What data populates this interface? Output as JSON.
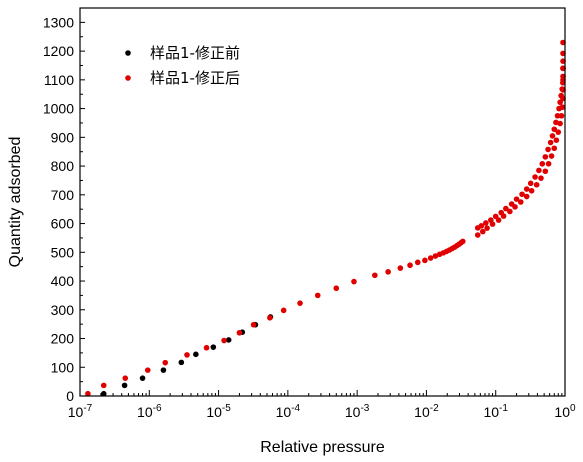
{
  "chart_data": {
    "type": "scatter",
    "title": "",
    "xlabel": "Relative pressure",
    "ylabel": "Quantity adsorbed",
    "x_scale": "log",
    "xlim": [
      1e-07,
      1
    ],
    "ylim": [
      0,
      1350
    ],
    "x_ticks": [
      {
        "value": 1e-07,
        "base": "10",
        "exp": "-7"
      },
      {
        "value": 1e-06,
        "base": "10",
        "exp": "-6"
      },
      {
        "value": 1e-05,
        "base": "10",
        "exp": "-5"
      },
      {
        "value": 0.0001,
        "base": "10",
        "exp": "-4"
      },
      {
        "value": 0.001,
        "base": "10",
        "exp": "-3"
      },
      {
        "value": 0.01,
        "base": "10",
        "exp": "-2"
      },
      {
        "value": 0.1,
        "base": "10",
        "exp": "-1"
      },
      {
        "value": 1,
        "base": "10",
        "exp": "0"
      }
    ],
    "y_ticks": [
      0,
      100,
      200,
      300,
      400,
      500,
      600,
      700,
      800,
      900,
      1000,
      1100,
      1200,
      1300
    ],
    "legend_position": "top-left",
    "grid": false,
    "series": [
      {
        "name": "样品1-修正前",
        "color": "#000000",
        "x": [
          2.2e-07,
          4.4e-07,
          8e-07,
          1.6e-06,
          2.9e-06,
          4.7e-06,
          8.4e-06,
          1.4e-05,
          2.2e-05,
          3.4e-05,
          5.6e-05
        ],
        "y": [
          8,
          37,
          62,
          90,
          117,
          145,
          170,
          195,
          222,
          248,
          275
        ]
      },
      {
        "name": "样品1-修正后",
        "color": "#e00000",
        "x": [
          1.3e-07,
          2.2e-07,
          4.5e-07,
          9.5e-07,
          1.7e-06,
          3.5e-06,
          6.7e-06,
          1.2e-05,
          2e-05,
          3.2e-05,
          5.5e-05,
          8.7e-05,
          0.00015,
          0.00027,
          0.0005,
          0.0009,
          0.0018,
          0.0028,
          0.0042,
          0.0058,
          0.0075,
          0.0095,
          0.0115,
          0.0135,
          0.0155,
          0.0175,
          0.0195,
          0.0215,
          0.0235,
          0.0255,
          0.0275,
          0.0295,
          0.0315,
          0.0335,
          0.055,
          0.062,
          0.072,
          0.085,
          0.1,
          0.12,
          0.14,
          0.17,
          0.2,
          0.24,
          0.28,
          0.32,
          0.37,
          0.42,
          0.47,
          0.52,
          0.57,
          0.62,
          0.66,
          0.7,
          0.74,
          0.78,
          0.82,
          0.85,
          0.88,
          0.91,
          0.93,
          0.95,
          0.97,
          0.98,
          0.99,
          1.0,
          0.055,
          0.065,
          0.075,
          0.09,
          0.11,
          0.13,
          0.16,
          0.19,
          0.23,
          0.28,
          0.33,
          0.39,
          0.45,
          0.52,
          0.58,
          0.64,
          0.7,
          0.75,
          0.8,
          0.85,
          0.89,
          0.92,
          0.95,
          0.97,
          0.985,
          0.995
        ],
        "y": [
          8,
          37,
          62,
          90,
          116,
          143,
          168,
          193,
          220,
          248,
          272,
          298,
          323,
          350,
          375,
          398,
          420,
          432,
          445,
          455,
          465,
          472,
          480,
          487,
          493,
          498,
          503,
          508,
          513,
          518,
          523,
          528,
          533,
          538,
          585,
          592,
          602,
          612,
          625,
          638,
          652,
          668,
          685,
          702,
          720,
          740,
          762,
          785,
          808,
          832,
          858,
          882,
          905,
          928,
          952,
          975,
          1000,
          1022,
          1045,
          1068,
          1090,
          1112,
          1140,
          1165,
          1192,
          1230,
          560,
          572,
          584,
          598,
          612,
          626,
          642,
          658,
          675,
          694,
          714,
          735,
          758,
          782,
          808,
          835,
          862,
          890,
          918,
          948,
          975,
          1005,
          1035,
          1065,
          1100,
          1140
        ]
      }
    ]
  }
}
